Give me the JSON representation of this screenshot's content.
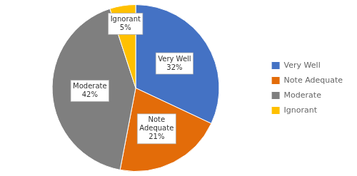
{
  "chart_data": {
    "type": "pie",
    "categories": [
      "Very Well",
      "Note Adequate",
      "Moderate",
      "Ignorant"
    ],
    "values": [
      32,
      21,
      42,
      5
    ],
    "colors": [
      "#4472C4",
      "#E36C09",
      "#7F7F7F",
      "#FFC000"
    ],
    "data_labels": true,
    "value_labels": [
      "Very Well\n32%",
      "Note\nAdequate\n21%",
      "Moderate\n42%",
      "Ignorant\n5%"
    ],
    "legend": "right"
  }
}
